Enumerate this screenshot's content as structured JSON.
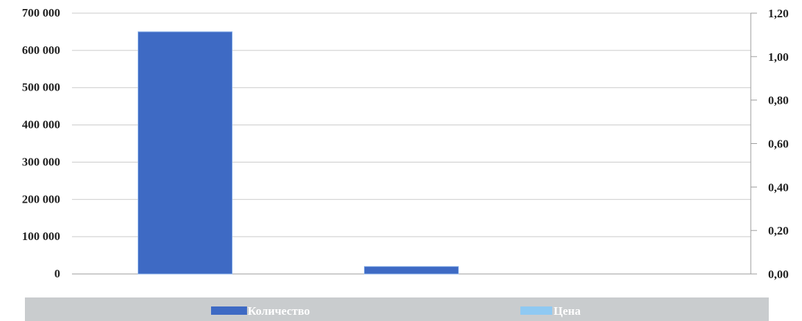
{
  "chart_data": {
    "type": "bar",
    "categories": [
      "",
      "",
      ""
    ],
    "series": [
      {
        "name": "Количество",
        "axis": "left",
        "values": [
          650000,
          20000,
          0
        ],
        "color": "#3E6AC4"
      },
      {
        "name": "Цена",
        "axis": "right",
        "values": [
          0,
          0,
          0
        ],
        "color": "#8FC9F2"
      }
    ],
    "y_left": {
      "range": [
        0,
        700000
      ],
      "ticks": [
        "0",
        "100 000",
        "200 000",
        "300 000",
        "400 000",
        "500 000",
        "600 000",
        "700 000"
      ]
    },
    "y_right": {
      "range": [
        0,
        1.2
      ],
      "ticks": [
        "0,00",
        "0,20",
        "0,40",
        "0,60",
        "0,80",
        "1,00",
        "1,20"
      ]
    },
    "grid": true,
    "legend_position": "bottom",
    "legend_background": "#C9CCCE"
  }
}
